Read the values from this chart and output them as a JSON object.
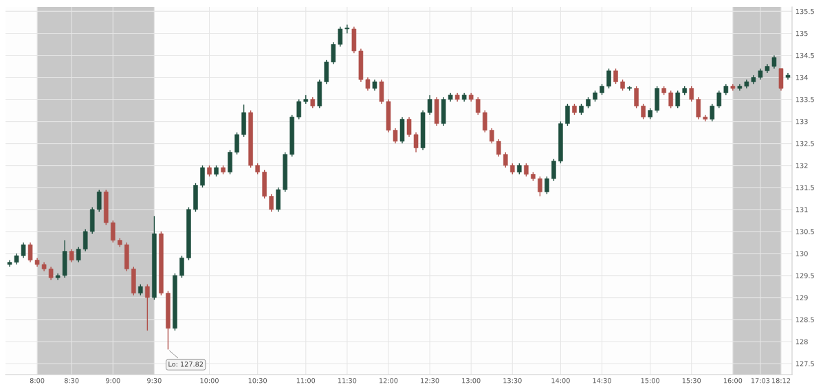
{
  "chart_data": {
    "type": "candlestick",
    "categories": [
      null,
      null,
      null,
      null,
      "8:00",
      null,
      null,
      null,
      null,
      "8:30",
      null,
      null,
      null,
      null,
      null,
      "9:00",
      null,
      null,
      null,
      null,
      null,
      "9:30",
      null,
      null,
      null,
      null,
      null,
      null,
      null,
      "10:00",
      null,
      null,
      null,
      null,
      null,
      null,
      "10:30",
      null,
      null,
      null,
      null,
      null,
      null,
      "11:00",
      null,
      null,
      null,
      null,
      null,
      "11:30",
      null,
      null,
      null,
      null,
      null,
      "12:00",
      null,
      null,
      null,
      null,
      null,
      "12:30",
      null,
      null,
      null,
      null,
      null,
      "13:00",
      null,
      null,
      null,
      null,
      null,
      "13:30",
      null,
      null,
      null,
      null,
      null,
      null,
      "14:00",
      null,
      null,
      null,
      null,
      null,
      "14:30",
      null,
      null,
      null,
      null,
      null,
      null,
      "15:00",
      null,
      null,
      null,
      null,
      null,
      "15:30",
      null,
      null,
      null,
      null,
      null,
      "16:00",
      null,
      null,
      null,
      "17:03",
      null,
      null,
      "18:12",
      null
    ],
    "ohlc": [
      [
        129.75,
        129.85,
        129.7,
        129.8
      ],
      [
        129.8,
        130.0,
        129.75,
        129.95
      ],
      [
        129.95,
        130.25,
        129.9,
        130.2
      ],
      [
        130.2,
        130.25,
        129.8,
        129.85
      ],
      [
        129.85,
        129.9,
        129.7,
        129.75
      ],
      [
        129.75,
        129.8,
        129.6,
        129.65
      ],
      [
        129.65,
        129.7,
        129.4,
        129.45
      ],
      [
        129.45,
        129.55,
        129.4,
        129.5
      ],
      [
        129.5,
        130.3,
        129.45,
        130.05
      ],
      [
        130.05,
        130.1,
        129.8,
        129.85
      ],
      [
        129.85,
        130.15,
        129.8,
        130.1
      ],
      [
        130.1,
        130.55,
        130.05,
        130.5
      ],
      [
        130.5,
        131.05,
        130.45,
        131.0
      ],
      [
        131.0,
        131.45,
        130.95,
        131.4
      ],
      [
        131.4,
        131.45,
        130.65,
        130.7
      ],
      [
        130.7,
        130.75,
        130.25,
        130.3
      ],
      [
        130.3,
        130.35,
        130.15,
        130.2
      ],
      [
        130.2,
        130.25,
        129.6,
        129.65
      ],
      [
        129.65,
        129.7,
        129.05,
        129.1
      ],
      [
        129.1,
        129.3,
        129.05,
        129.25
      ],
      [
        129.25,
        129.3,
        128.25,
        129.0
      ],
      [
        129.0,
        130.85,
        128.95,
        130.45
      ],
      [
        130.45,
        130.5,
        129.05,
        129.1
      ],
      [
        129.1,
        129.15,
        127.82,
        128.3
      ],
      [
        128.3,
        129.55,
        128.25,
        129.5
      ],
      [
        129.5,
        129.95,
        129.45,
        129.9
      ],
      [
        129.9,
        131.05,
        129.85,
        131.0
      ],
      [
        131.0,
        131.6,
        130.95,
        131.55
      ],
      [
        131.55,
        132.0,
        131.5,
        131.95
      ],
      [
        131.95,
        132.0,
        131.75,
        131.8
      ],
      [
        131.8,
        132.0,
        131.75,
        131.95
      ],
      [
        131.95,
        132.0,
        131.8,
        131.85
      ],
      [
        131.85,
        132.35,
        131.8,
        132.3
      ],
      [
        132.3,
        132.75,
        132.25,
        132.7
      ],
      [
        132.7,
        133.38,
        132.65,
        133.2
      ],
      [
        133.2,
        133.25,
        131.95,
        132.0
      ],
      [
        132.0,
        132.05,
        131.8,
        131.85
      ],
      [
        131.85,
        131.9,
        131.25,
        131.3
      ],
      [
        131.3,
        131.35,
        130.95,
        131.0
      ],
      [
        131.0,
        131.5,
        130.95,
        131.45
      ],
      [
        131.45,
        132.3,
        131.4,
        132.25
      ],
      [
        132.25,
        133.15,
        132.2,
        133.1
      ],
      [
        133.1,
        133.5,
        133.05,
        133.45
      ],
      [
        133.45,
        133.6,
        133.4,
        133.5
      ],
      [
        133.5,
        133.55,
        133.3,
        133.35
      ],
      [
        133.35,
        133.95,
        133.3,
        133.9
      ],
      [
        133.9,
        134.4,
        133.85,
        134.35
      ],
      [
        134.35,
        134.8,
        134.3,
        134.75
      ],
      [
        134.75,
        135.15,
        134.7,
        135.1
      ],
      [
        135.1,
        135.2,
        135.0,
        135.1
      ],
      [
        135.1,
        135.15,
        134.55,
        134.6
      ],
      [
        134.6,
        134.65,
        133.9,
        133.95
      ],
      [
        133.95,
        134.0,
        133.7,
        133.75
      ],
      [
        133.75,
        133.95,
        133.7,
        133.9
      ],
      [
        133.9,
        133.95,
        133.4,
        133.45
      ],
      [
        133.45,
        133.5,
        132.75,
        132.8
      ],
      [
        132.8,
        132.85,
        132.5,
        132.55
      ],
      [
        132.55,
        133.1,
        132.5,
        133.05
      ],
      [
        133.05,
        133.1,
        132.65,
        132.7
      ],
      [
        132.7,
        132.75,
        132.3,
        132.4
      ],
      [
        132.4,
        133.25,
        132.35,
        133.2
      ],
      [
        133.2,
        133.6,
        133.15,
        133.5
      ],
      [
        133.5,
        133.55,
        132.9,
        132.95
      ],
      [
        132.95,
        133.55,
        132.9,
        133.5
      ],
      [
        133.5,
        133.65,
        133.45,
        133.6
      ],
      [
        133.6,
        133.65,
        133.45,
        133.5
      ],
      [
        133.5,
        133.65,
        133.45,
        133.6
      ],
      [
        133.6,
        133.65,
        133.45,
        133.5
      ],
      [
        133.5,
        133.55,
        133.15,
        133.2
      ],
      [
        133.2,
        133.25,
        132.75,
        132.8
      ],
      [
        132.8,
        132.85,
        132.5,
        132.55
      ],
      [
        132.55,
        132.6,
        132.2,
        132.25
      ],
      [
        132.25,
        132.3,
        131.95,
        132.0
      ],
      [
        132.0,
        132.05,
        131.8,
        131.85
      ],
      [
        131.85,
        132.05,
        131.8,
        132.0
      ],
      [
        132.0,
        132.05,
        131.75,
        131.8
      ],
      [
        131.8,
        131.85,
        131.65,
        131.7
      ],
      [
        131.7,
        131.75,
        131.3,
        131.4
      ],
      [
        131.4,
        131.75,
        131.35,
        131.7
      ],
      [
        131.7,
        132.15,
        131.65,
        132.1
      ],
      [
        132.1,
        133.0,
        132.05,
        132.95
      ],
      [
        132.95,
        133.4,
        132.9,
        133.35
      ],
      [
        133.35,
        133.4,
        133.15,
        133.2
      ],
      [
        133.2,
        133.4,
        133.15,
        133.35
      ],
      [
        133.35,
        133.55,
        133.3,
        133.5
      ],
      [
        133.5,
        133.7,
        133.45,
        133.65
      ],
      [
        133.65,
        133.85,
        133.6,
        133.8
      ],
      [
        133.8,
        134.2,
        133.75,
        134.15
      ],
      [
        134.15,
        134.2,
        133.85,
        133.9
      ],
      [
        133.9,
        133.95,
        133.7,
        133.75
      ],
      [
        133.75,
        133.8,
        133.7,
        133.75
      ],
      [
        133.75,
        133.8,
        133.3,
        133.35
      ],
      [
        133.35,
        133.4,
        133.05,
        133.1
      ],
      [
        133.1,
        133.3,
        133.05,
        133.25
      ],
      [
        133.25,
        133.8,
        133.2,
        133.75
      ],
      [
        133.75,
        133.8,
        133.6,
        133.65
      ],
      [
        133.65,
        133.7,
        133.3,
        133.35
      ],
      [
        133.35,
        133.7,
        133.3,
        133.65
      ],
      [
        133.65,
        133.8,
        133.6,
        133.75
      ],
      [
        133.75,
        133.8,
        133.45,
        133.5
      ],
      [
        133.5,
        133.55,
        133.05,
        133.1
      ],
      [
        133.1,
        133.15,
        133.0,
        133.05
      ],
      [
        133.05,
        133.4,
        133.0,
        133.35
      ],
      [
        133.35,
        133.7,
        133.3,
        133.65
      ],
      [
        133.65,
        133.85,
        133.6,
        133.8
      ],
      [
        133.8,
        133.85,
        133.7,
        133.75
      ],
      [
        133.75,
        133.85,
        133.7,
        133.8
      ],
      [
        133.8,
        133.95,
        133.75,
        133.9
      ],
      [
        133.9,
        134.05,
        133.85,
        134.0
      ],
      [
        134.0,
        134.2,
        133.95,
        134.15
      ],
      [
        134.15,
        134.3,
        134.1,
        134.25
      ],
      [
        134.25,
        134.5,
        134.2,
        134.45
      ],
      [
        134.2,
        134.2,
        133.7,
        133.75
      ],
      [
        134.0,
        134.1,
        133.95,
        134.05
      ]
    ],
    "ylim": [
      127.25,
      135.6
    ],
    "yticks": [
      127.5,
      128,
      128.5,
      129,
      129.5,
      130,
      130.5,
      131,
      131.5,
      132,
      132.5,
      133,
      133.5,
      134,
      134.5,
      135,
      135.5
    ],
    "bands": [
      {
        "axis": "x",
        "from": "8:00",
        "to": "9:30",
        "color": "#c8c8c8"
      },
      {
        "axis": "x",
        "from": "16:00",
        "to": "18:12",
        "color": "#c8c8c8"
      }
    ],
    "annotations": [
      "Lo: 127.82"
    ],
    "grid": true
  }
}
